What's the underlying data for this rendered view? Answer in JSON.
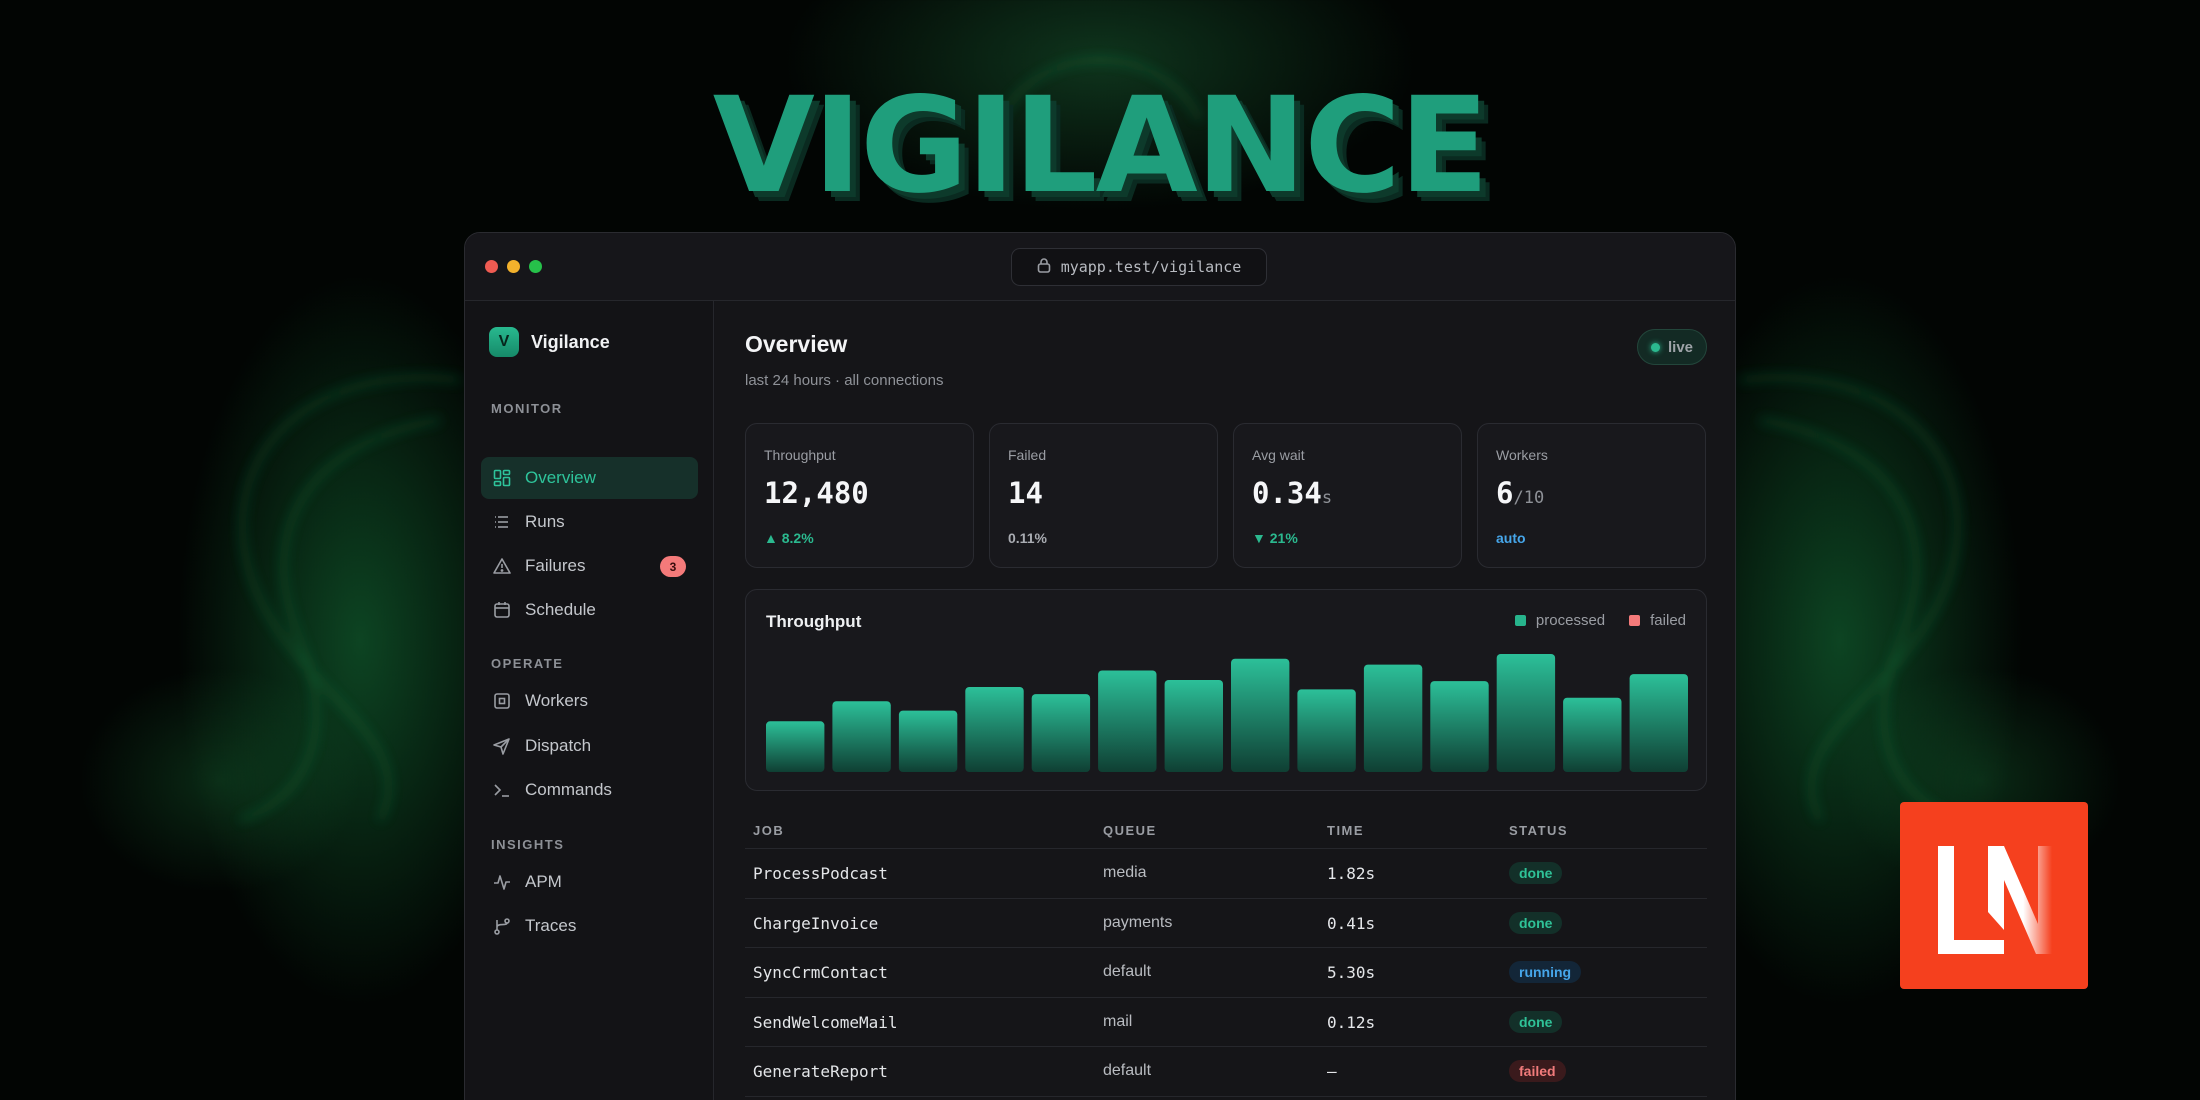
{
  "hero": {
    "title": "VIGILANCE"
  },
  "browser": {
    "url": "myapp.test/vigilance"
  },
  "sidebar": {
    "brand_initial": "V",
    "brand_name": "Vigilance",
    "sections": [
      {
        "label": "MONITOR",
        "items": [
          {
            "label": "Overview",
            "icon": "grid-icon",
            "active": true
          },
          {
            "label": "Runs",
            "icon": "list-icon"
          },
          {
            "label": "Failures",
            "icon": "warning-icon",
            "badge": "3"
          },
          {
            "label": "Schedule",
            "icon": "calendar-icon"
          }
        ]
      },
      {
        "label": "OPERATE",
        "items": [
          {
            "label": "Workers",
            "icon": "cpu-icon"
          },
          {
            "label": "Dispatch",
            "icon": "send-icon"
          },
          {
            "label": "Commands",
            "icon": "terminal-icon"
          }
        ]
      },
      {
        "label": "INSIGHTS",
        "items": [
          {
            "label": "APM",
            "icon": "pulse-icon"
          },
          {
            "label": "Traces",
            "icon": "branch-icon"
          }
        ]
      }
    ]
  },
  "header": {
    "title": "Overview",
    "subtitle": "last 24 hours · all connections",
    "live_label": "live"
  },
  "stats": [
    {
      "label": "Throughput",
      "value": "12,480",
      "unit": "",
      "foot": "▲ 8.2%",
      "foot_color": "#2bb98f"
    },
    {
      "label": "Failed",
      "value": "14",
      "unit": "",
      "foot": "0.11%",
      "foot_color": "#a9acb2"
    },
    {
      "label": "Avg wait",
      "value": "0.34",
      "unit": "s",
      "foot": "▼ 21%",
      "foot_color": "#2bb98f"
    },
    {
      "label": "Workers",
      "value": "6",
      "unit": "/10",
      "foot": "auto",
      "foot_color": "#46a6ea"
    }
  ],
  "chart_data": {
    "type": "bar",
    "title": "Throughput",
    "legend": [
      "processed",
      "failed"
    ],
    "colors": {
      "processed": "#27b48c",
      "failed": "#f47a7a"
    },
    "series": [
      {
        "name": "processed",
        "values": [
          43,
          60,
          52,
          72,
          66,
          86,
          78,
          96,
          70,
          91,
          77,
          100,
          63,
          83
        ]
      }
    ]
  },
  "table": {
    "columns": [
      "JOB",
      "QUEUE",
      "TIME",
      "STATUS"
    ],
    "rows": [
      {
        "job": "ProcessPodcast",
        "queue": "media",
        "time": "1.82s",
        "status": "done"
      },
      {
        "job": "ChargeInvoice",
        "queue": "payments",
        "time": "0.41s",
        "status": "done"
      },
      {
        "job": "SyncCrmContact",
        "queue": "default",
        "time": "5.30s",
        "status": "running"
      },
      {
        "job": "SendWelcomeMail",
        "queue": "mail",
        "time": "0.12s",
        "status": "done"
      },
      {
        "job": "GenerateReport",
        "queue": "default",
        "time": "—",
        "status": "failed"
      }
    ]
  },
  "badge_logo": {
    "text": "LN",
    "color": "#f5401e"
  }
}
